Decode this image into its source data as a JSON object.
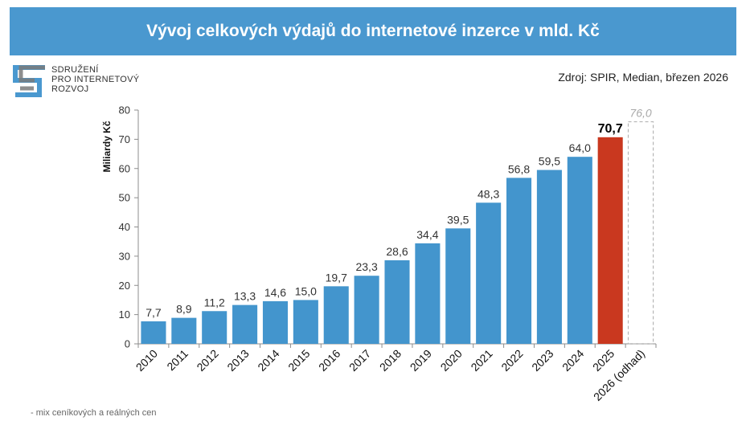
{
  "header": {
    "title": "Vývoj celkových výdajů do internetové inzerce v mld. Kč"
  },
  "logo": {
    "line1": "SDRUŽENÍ",
    "line2": "PRO INTERNETOVÝ",
    "line3": "ROZVOJ",
    "icon": "spir-logo-icon"
  },
  "source": "Zdroj: SPIR, Median, březen 2026",
  "footnote": "- mix ceníkových a reálných cen",
  "colors": {
    "banner": "#4a98cf",
    "bar": "#4395cd",
    "highlight": "#c9381f",
    "estimate_border": "#b5b5b5"
  },
  "chart_data": {
    "type": "bar",
    "ylabel": "Miliardy Kč",
    "ylim": [
      0,
      80
    ],
    "yticks": [
      "0",
      "10",
      "20",
      "30",
      "40",
      "50",
      "60",
      "70",
      "80"
    ],
    "categories": [
      "2010",
      "2011",
      "2012",
      "2013",
      "2014",
      "2015",
      "2016",
      "2017",
      "2018",
      "2019",
      "2020",
      "2021",
      "2022",
      "2023",
      "2024",
      "2025",
      "2026 (odhad)"
    ],
    "values": [
      7.7,
      8.9,
      11.2,
      13.3,
      14.6,
      15.0,
      19.7,
      23.3,
      28.6,
      34.4,
      39.5,
      48.3,
      56.8,
      59.5,
      64.0,
      70.7,
      76.0
    ],
    "value_labels": [
      "7,7",
      "8,9",
      "11,2",
      "13,3",
      "14,6",
      "15,0",
      "19,7",
      "23,3",
      "28,6",
      "34,4",
      "39,5",
      "48,3",
      "56,8",
      "59,5",
      "64,0",
      "70,7",
      "76,0"
    ],
    "highlight_category": "2025",
    "estimate_category": "2026 (odhad)",
    "grid": false,
    "legend": "none"
  }
}
